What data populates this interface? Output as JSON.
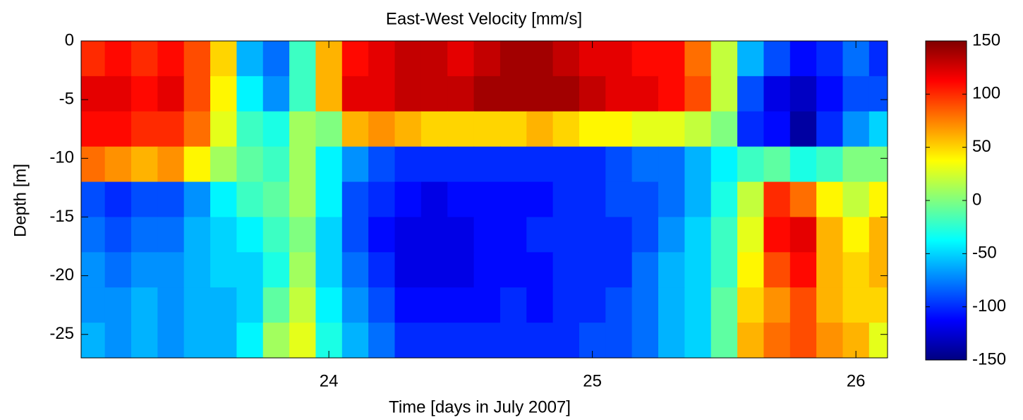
{
  "chart_data": {
    "type": "heatmap",
    "title": "East-West Velocity [mm/s]",
    "x_label": "Time [days in July 2007]",
    "y_label": "Depth [m]",
    "x": [
      23.1,
      23.2,
      23.3,
      23.4,
      23.5,
      23.6,
      23.7,
      23.8,
      23.9,
      24.0,
      24.1,
      24.2,
      24.3,
      24.4,
      24.5,
      24.6,
      24.7,
      24.8,
      24.9,
      25.0,
      25.1,
      25.2,
      25.3,
      25.4,
      25.5,
      25.6,
      25.7,
      25.8,
      25.9,
      26.0,
      26.1
    ],
    "y": [
      -1.5,
      -4.5,
      -7.5,
      -10.5,
      -13.5,
      -16.5,
      -19.5,
      -22.5,
      -25.5
    ],
    "z": [
      [
        100,
        110,
        100,
        110,
        90,
        50,
        -60,
        -80,
        -20,
        60,
        110,
        120,
        130,
        130,
        120,
        130,
        140,
        140,
        130,
        120,
        120,
        110,
        110,
        80,
        20,
        -60,
        -90,
        -110,
        -100,
        -80,
        -100
      ],
      [
        120,
        120,
        110,
        120,
        90,
        40,
        -40,
        -70,
        -20,
        60,
        120,
        120,
        130,
        130,
        130,
        140,
        140,
        140,
        140,
        130,
        120,
        120,
        110,
        90,
        20,
        -90,
        -120,
        -130,
        -110,
        -90,
        -90
      ],
      [
        110,
        110,
        100,
        100,
        80,
        30,
        -20,
        -30,
        10,
        0,
        60,
        70,
        60,
        50,
        50,
        50,
        50,
        60,
        50,
        40,
        40,
        30,
        30,
        20,
        0,
        -100,
        -110,
        -140,
        -100,
        -70,
        -50
      ],
      [
        80,
        70,
        60,
        70,
        40,
        10,
        -10,
        -20,
        10,
        -40,
        -70,
        -90,
        -100,
        -100,
        -100,
        -100,
        -100,
        -100,
        -100,
        -100,
        -90,
        -80,
        -80,
        -60,
        -40,
        -20,
        -10,
        -30,
        -20,
        0,
        0
      ],
      [
        -90,
        -100,
        -90,
        -90,
        -70,
        -40,
        -20,
        -10,
        10,
        -40,
        -90,
        -100,
        -110,
        -120,
        -110,
        -110,
        -110,
        -110,
        -100,
        -100,
        -90,
        -90,
        -80,
        -60,
        -30,
        20,
        100,
        80,
        40,
        20,
        40
      ],
      [
        -80,
        -90,
        -80,
        -80,
        -60,
        -50,
        -40,
        -20,
        0,
        -50,
        -90,
        -110,
        -120,
        -120,
        -120,
        -110,
        -110,
        -100,
        -100,
        -100,
        -100,
        -90,
        -70,
        -50,
        -20,
        30,
        110,
        120,
        60,
        40,
        60
      ],
      [
        -70,
        -80,
        -70,
        -70,
        -60,
        -50,
        -50,
        -30,
        10,
        -50,
        -80,
        -100,
        -120,
        -120,
        -120,
        -110,
        -110,
        -110,
        -100,
        -100,
        -100,
        -80,
        -60,
        -50,
        -20,
        40,
        90,
        110,
        60,
        50,
        60
      ],
      [
        -70,
        -70,
        -60,
        -70,
        -60,
        -60,
        -50,
        -10,
        20,
        -40,
        -70,
        -90,
        -110,
        -110,
        -110,
        -110,
        -100,
        -110,
        -100,
        -100,
        -90,
        -80,
        -60,
        -50,
        -10,
        50,
        70,
        90,
        60,
        50,
        50
      ],
      [
        -60,
        -70,
        -60,
        -70,
        -60,
        -60,
        -40,
        10,
        30,
        -30,
        -60,
        -80,
        -100,
        -100,
        -100,
        -100,
        -100,
        -100,
        -100,
        -90,
        -90,
        -80,
        -60,
        -50,
        -10,
        60,
        80,
        90,
        70,
        60,
        30
      ]
    ],
    "xlim": [
      23.06,
      26.12
    ],
    "xticks": [
      24,
      25,
      26
    ],
    "ylim": [
      -27,
      0
    ],
    "yticks": [
      0,
      -5,
      -10,
      -15,
      -20,
      -25
    ],
    "colormap": "jet",
    "clim": [
      -150,
      150
    ],
    "cticks": [
      150,
      100,
      50,
      0,
      -50,
      -100,
      -150
    ]
  }
}
